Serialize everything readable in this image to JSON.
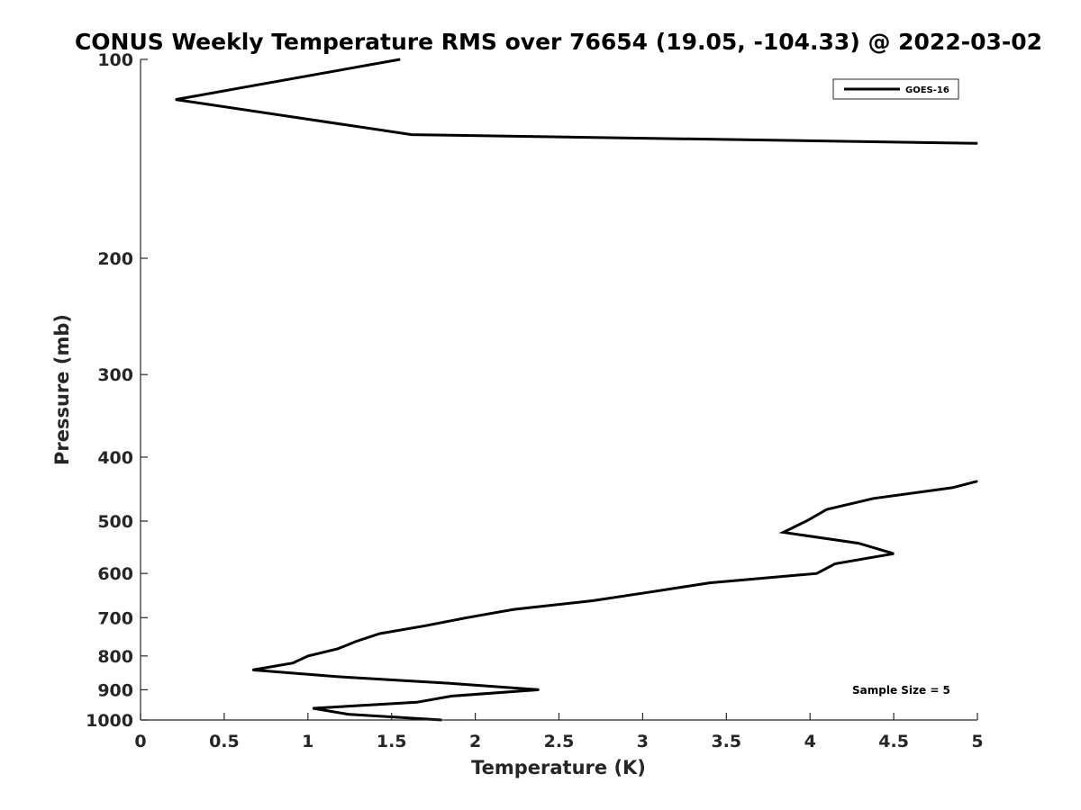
{
  "chart_data": {
    "type": "line",
    "title": "CONUS Weekly Temperature RMS over 76654 (19.05, -104.33) @ 2022-03-02",
    "xlabel": "Temperature (K)",
    "ylabel": "Pressure (mb)",
    "xlim": [
      0,
      5
    ],
    "ylim": [
      100,
      1000
    ],
    "y_scale": "log",
    "y_reversed": true,
    "x_ticks": [
      0,
      0.5,
      1,
      1.5,
      2,
      2.5,
      3,
      3.5,
      4,
      4.5,
      5
    ],
    "x_tick_labels": [
      "0",
      "0.5",
      "1",
      "1.5",
      "2",
      "2.5",
      "3",
      "3.5",
      "4",
      "4.5",
      "5"
    ],
    "y_ticks": [
      100,
      200,
      300,
      400,
      500,
      600,
      700,
      800,
      900,
      1000
    ],
    "y_tick_labels": [
      "100",
      "200",
      "300",
      "400",
      "500",
      "600",
      "700",
      "800",
      "900",
      "1000"
    ],
    "grid": false,
    "legend_position": "top-right",
    "annotation": "Sample Size = 5",
    "series": [
      {
        "name": "GOES-16",
        "color": "#000000",
        "segments": [
          [
            [
              1.55,
              100
            ],
            [
              0.21,
              115
            ],
            [
              1.62,
              130
            ],
            [
              5.0,
              134
            ]
          ],
          [
            [
              5.0,
              435
            ],
            [
              4.85,
              445
            ],
            [
              4.38,
              462
            ],
            [
              4.1,
              480
            ],
            [
              3.99,
              498
            ],
            [
              3.84,
              520
            ],
            [
              4.29,
              540
            ],
            [
              4.5,
              560
            ],
            [
              4.15,
              580
            ],
            [
              4.04,
              600
            ],
            [
              3.4,
              620
            ],
            [
              3.05,
              640
            ],
            [
              2.7,
              660
            ],
            [
              2.23,
              680
            ],
            [
              1.95,
              700
            ],
            [
              1.7,
              720
            ],
            [
              1.43,
              740
            ],
            [
              1.29,
              760
            ],
            [
              1.18,
              780
            ],
            [
              1.0,
              800
            ],
            [
              0.91,
              820
            ],
            [
              0.67,
              840
            ],
            [
              1.18,
              860
            ],
            [
              1.85,
              880
            ],
            [
              2.38,
              900
            ],
            [
              1.86,
              920
            ],
            [
              1.65,
              940
            ],
            [
              1.03,
              960
            ],
            [
              1.24,
              980
            ],
            [
              1.8,
              1000
            ]
          ]
        ]
      }
    ]
  }
}
